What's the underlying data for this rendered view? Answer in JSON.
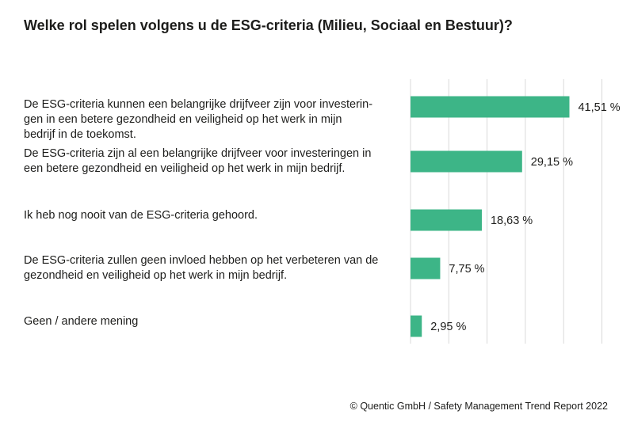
{
  "chart_data": {
    "type": "bar",
    "orientation": "horizontal",
    "title": "Welke rol spelen volgens u de ESG-criteria (Milieu, Sociaal en Bestuur)?",
    "categories": [
      "De ESG-criteria kunnen een belangrijke drijfveer zijn voor investeringen in een betere gezondheid en veiligheid op het werk in mijn bedrijf in de toekomst.",
      "De ESG-criteria zijn al een belangrijke drijfveer voor investeringen in een betere gezondheid en veiligheid op het werk in mijn bedrijf.",
      "Ik heb nog nooit van de ESG-criteria gehoord.",
      "De ESG-criteria zullen geen invloed hebben op het verbeteren van de gezondheid en veiligheid op het werk in mijn bedrijf.",
      "Geen / andere mening"
    ],
    "category_lines": [
      [
        "De ESG-criteria kunnen een belangrijke drijfveer zijn voor investerin-",
        "gen in een betere gezondheid en veiligheid op het werk in mijn",
        "bedrijf in de toekomst."
      ],
      [
        "De ESG-criteria zijn al een belangrijke drijfveer voor investeringen in",
        "een betere gezondheid en veiligheid op het werk in mijn bedrijf."
      ],
      [
        "Ik heb nog nooit van de ESG-criteria gehoord."
      ],
      [
        "De ESG-criteria zullen geen invloed hebben op het verbeteren van de",
        "gezondheid en veiligheid op het werk in mijn bedrijf."
      ],
      [
        "Geen / andere mening"
      ]
    ],
    "values": [
      41.51,
      29.15,
      18.63,
      7.75,
      2.95
    ],
    "value_labels": [
      "41,51 %",
      "29,15 %",
      "18,63 %",
      "7,75 %",
      "2,95 %"
    ],
    "xlim": [
      0,
      50
    ],
    "grid": true,
    "bar_color": "#3db587",
    "grid_color": "#d9d9d9"
  },
  "footer": "© Quentic GmbH / Safety Management Trend Report 2022"
}
